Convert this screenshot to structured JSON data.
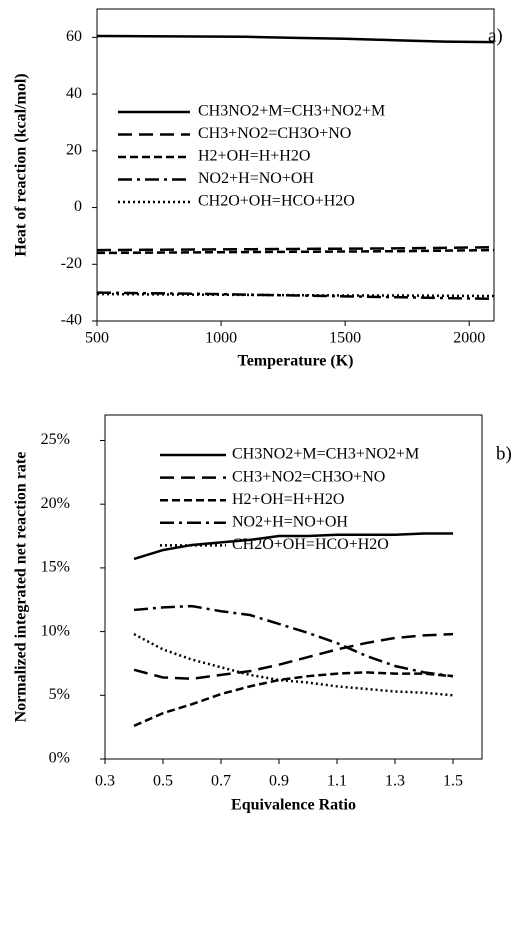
{
  "chart_data": [
    {
      "type": "line",
      "panel_label": "a)",
      "x_label": "Temperature (K)",
      "y_label": "Heat of reaction (kcal/mol)",
      "x": [
        500,
        700,
        900,
        1100,
        1300,
        1500,
        1700,
        1900,
        2100
      ],
      "xlim": [
        500,
        2100
      ],
      "xticks": [
        500,
        1000,
        1500,
        2000
      ],
      "ylim": [
        -40,
        70
      ],
      "yticks": [
        -40,
        -20,
        0,
        20,
        40,
        60
      ],
      "grid": false,
      "series": [
        {
          "name": "CH3NO2+M=CH3+NO2+M",
          "color": "#000000",
          "dash": "solid",
          "values": [
            60.5,
            60.4,
            60.3,
            60.2,
            59.8,
            59.5,
            59,
            58.5,
            58.3
          ]
        },
        {
          "name": "CH3+NO2=CH3O+NO",
          "color": "#000000",
          "dash": "long-dash",
          "values": [
            -15,
            -14.9,
            -14.8,
            -14.7,
            -14.6,
            -14.5,
            -14.4,
            -14.2,
            -14
          ]
        },
        {
          "name": "H2+OH=H+H2O",
          "color": "#000000",
          "dash": "dash",
          "values": [
            -16,
            -15.9,
            -15.8,
            -15.7,
            -15.6,
            -15.5,
            -15.4,
            -15.2,
            -15
          ]
        },
        {
          "name": "NO2+H=NO+OH",
          "color": "#000000",
          "dash": "dash-dot",
          "values": [
            -30,
            -30.2,
            -30.4,
            -30.7,
            -31,
            -31.3,
            -31.6,
            -31.9,
            -32.2
          ]
        },
        {
          "name": "CH2O+OH=HCO+H2O",
          "color": "#000000",
          "dash": "dot",
          "values": [
            -30.5,
            -30.6,
            -30.7,
            -30.8,
            -30.9,
            -31,
            -31,
            -31.1,
            -31.2
          ]
        }
      ]
    },
    {
      "type": "line",
      "panel_label": "b)",
      "x_label": "Equivalence Ratio",
      "y_label": "Normalized integrated net reaction rate",
      "x": [
        0.4,
        0.5,
        0.6,
        0.7,
        0.8,
        0.9,
        1.0,
        1.1,
        1.2,
        1.3,
        1.4,
        1.5
      ],
      "xlim": [
        0.3,
        1.6
      ],
      "xticks": [
        0.3,
        0.5,
        0.7,
        0.9,
        1.1,
        1.3,
        1.5
      ],
      "ylim": [
        0,
        27
      ],
      "yticks": [
        {
          "value": 0,
          "label": "0%"
        },
        {
          "value": 5,
          "label": "5%"
        },
        {
          "value": 10,
          "label": "10%"
        },
        {
          "value": 15,
          "label": "15%"
        },
        {
          "value": 20,
          "label": "20%"
        },
        {
          "value": 25,
          "label": "25%"
        }
      ],
      "grid": false,
      "series": [
        {
          "name": "CH3NO2+M=CH3+NO2+M",
          "color": "#000000",
          "dash": "solid",
          "values": [
            15.7,
            16.4,
            16.8,
            17.0,
            17.2,
            17.5,
            17.5,
            17.6,
            17.6,
            17.6,
            17.7,
            17.7
          ]
        },
        {
          "name": "CH3+NO2=CH3O+NO",
          "color": "#000000",
          "dash": "long-dash",
          "values": [
            7.0,
            6.4,
            6.3,
            6.6,
            6.9,
            7.4,
            8.0,
            8.6,
            9.1,
            9.5,
            9.7,
            9.8
          ]
        },
        {
          "name": "H2+OH=H+H2O",
          "color": "#000000",
          "dash": "dash",
          "values": [
            2.6,
            3.6,
            4.3,
            5.1,
            5.7,
            6.2,
            6.5,
            6.7,
            6.8,
            6.7,
            6.7,
            6.5
          ]
        },
        {
          "name": "NO2+H=NO+OH",
          "color": "#000000",
          "dash": "dash-dot",
          "values": [
            11.7,
            11.9,
            12.0,
            11.6,
            11.3,
            10.6,
            9.9,
            9.1,
            8.1,
            7.3,
            6.8,
            6.5
          ]
        },
        {
          "name": "CH2O+OH=HCO+H2O",
          "color": "#000000",
          "dash": "dot",
          "values": [
            9.8,
            8.6,
            7.8,
            7.2,
            6.6,
            6.2,
            6.0,
            5.7,
            5.5,
            5.3,
            5.2,
            5.0
          ]
        }
      ]
    }
  ]
}
